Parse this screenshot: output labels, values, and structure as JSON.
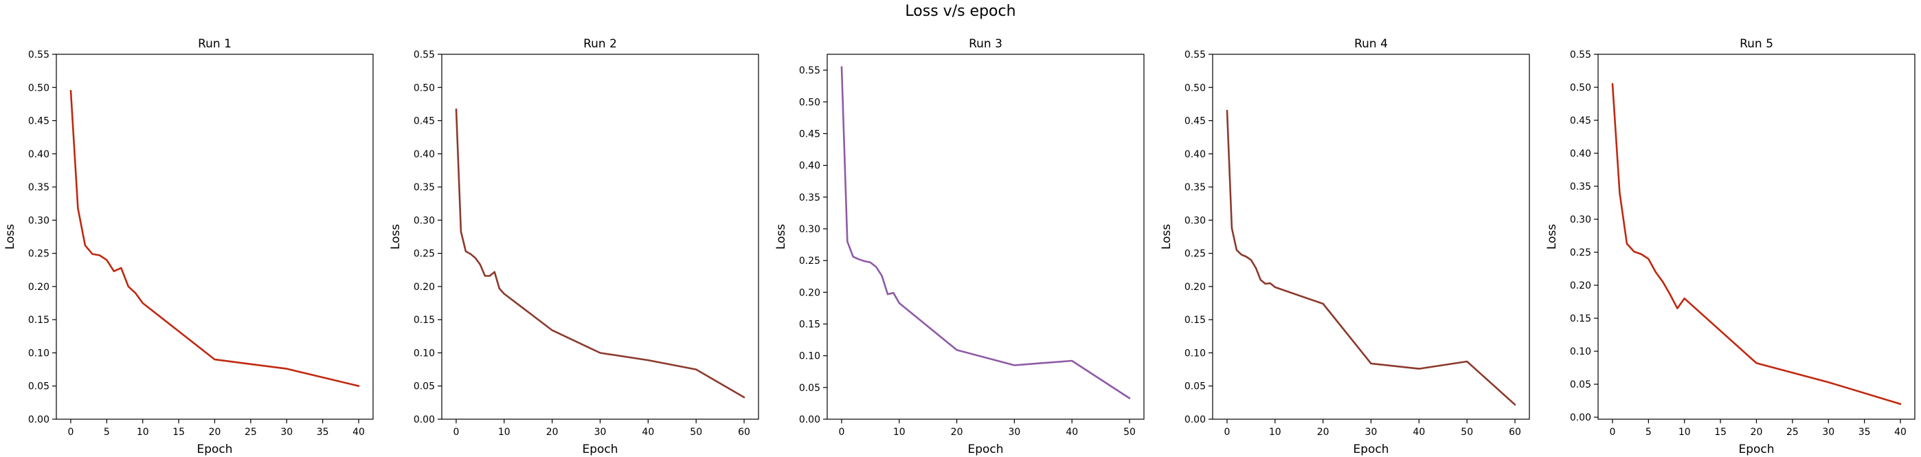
{
  "figure": {
    "suptitle": "Loss v/s epoch"
  },
  "chart_data": [
    {
      "type": "line",
      "title": "Run 1",
      "xlabel": "Epoch",
      "ylabel": "Loss",
      "xlim": [
        -2,
        42
      ],
      "ylim": [
        0,
        0.55
      ],
      "xticks": [
        0,
        5,
        10,
        15,
        20,
        25,
        30,
        35,
        40
      ],
      "yticks": [
        0.0,
        0.05,
        0.1,
        0.15,
        0.2,
        0.25,
        0.3,
        0.35,
        0.4,
        0.45,
        0.5,
        0.55
      ],
      "grid": false,
      "color": "#c0280f",
      "x": [
        0,
        1,
        2,
        3,
        4,
        5,
        6,
        7,
        8,
        9,
        10,
        20,
        30,
        40
      ],
      "y": [
        0.495,
        0.318,
        0.262,
        0.249,
        0.247,
        0.24,
        0.223,
        0.228,
        0.2,
        0.19,
        0.175,
        0.09,
        0.076,
        0.05
      ]
    },
    {
      "type": "line",
      "title": "Run 2",
      "xlabel": "Epoch",
      "ylabel": "Loss",
      "xlim": [
        -3,
        63
      ],
      "ylim": [
        0,
        0.55
      ],
      "xticks": [
        0,
        10,
        20,
        30,
        40,
        50,
        60
      ],
      "yticks": [
        0.0,
        0.05,
        0.1,
        0.15,
        0.2,
        0.25,
        0.3,
        0.35,
        0.4,
        0.45,
        0.5,
        0.55
      ],
      "grid": false,
      "color": "#8b3a2c",
      "x": [
        0,
        1,
        2,
        3,
        4,
        5,
        6,
        7,
        8,
        9,
        10,
        20,
        30,
        40,
        50,
        60
      ],
      "y": [
        0.467,
        0.283,
        0.253,
        0.249,
        0.243,
        0.233,
        0.216,
        0.216,
        0.222,
        0.197,
        0.189,
        0.134,
        0.1,
        0.089,
        0.075,
        0.033
      ]
    },
    {
      "type": "line",
      "title": "Run 3",
      "xlabel": "Epoch",
      "ylabel": "Loss",
      "xlim": [
        -2.5,
        52.5
      ],
      "ylim": [
        0,
        0.575
      ],
      "xticks": [
        0,
        10,
        20,
        30,
        40,
        50
      ],
      "yticks": [
        0.0,
        0.05,
        0.1,
        0.15,
        0.2,
        0.25,
        0.3,
        0.35,
        0.4,
        0.45,
        0.5,
        0.55
      ],
      "grid": false,
      "color": "#8e5aa6",
      "x": [
        0,
        1,
        2,
        3,
        4,
        5,
        6,
        7,
        8,
        9,
        10,
        20,
        30,
        40,
        50
      ],
      "y": [
        0.555,
        0.28,
        0.256,
        0.252,
        0.249,
        0.247,
        0.24,
        0.226,
        0.197,
        0.199,
        0.183,
        0.109,
        0.085,
        0.092,
        0.033
      ]
    },
    {
      "type": "line",
      "title": "Run 4",
      "xlabel": "Epoch",
      "ylabel": "Loss",
      "xlim": [
        -3,
        63
      ],
      "ylim": [
        0,
        0.55
      ],
      "xticks": [
        0,
        10,
        20,
        30,
        40,
        50,
        60
      ],
      "yticks": [
        0.0,
        0.05,
        0.1,
        0.15,
        0.2,
        0.25,
        0.3,
        0.35,
        0.4,
        0.45,
        0.5,
        0.55
      ],
      "grid": false,
      "color": "#8b3a2c",
      "x": [
        0,
        1,
        2,
        3,
        4,
        5,
        6,
        7,
        8,
        9,
        10,
        20,
        30,
        40,
        50,
        60
      ],
      "y": [
        0.465,
        0.288,
        0.255,
        0.248,
        0.245,
        0.24,
        0.228,
        0.21,
        0.204,
        0.205,
        0.199,
        0.174,
        0.084,
        0.076,
        0.087,
        0.022
      ]
    },
    {
      "type": "line",
      "title": "Run 5",
      "xlabel": "Epoch",
      "ylabel": "Loss",
      "xlim": [
        -2,
        42
      ],
      "ylim": [
        -0.003,
        0.55
      ],
      "xticks": [
        0,
        5,
        10,
        15,
        20,
        25,
        30,
        35,
        40
      ],
      "yticks": [
        0.0,
        0.05,
        0.1,
        0.15,
        0.2,
        0.25,
        0.3,
        0.35,
        0.4,
        0.45,
        0.5,
        0.55
      ],
      "grid": false,
      "color": "#c0280f",
      "x": [
        0,
        1,
        2,
        3,
        4,
        5,
        6,
        7,
        8,
        9,
        10,
        20,
        30,
        40
      ],
      "y": [
        0.505,
        0.34,
        0.263,
        0.251,
        0.247,
        0.24,
        0.22,
        0.205,
        0.186,
        0.165,
        0.18,
        0.082,
        0.053,
        0.02
      ]
    }
  ]
}
